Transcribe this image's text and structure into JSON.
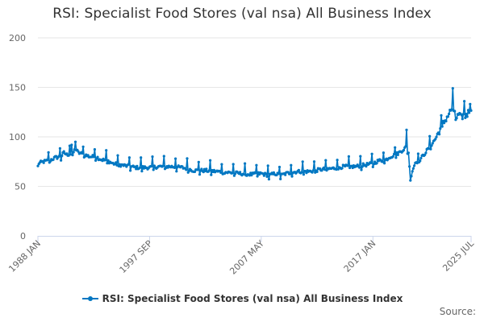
{
  "colors": {
    "series": "#0077c2",
    "grid": "#e6e6e6",
    "axis": "#ccd6eb",
    "label": "#666666"
  },
  "footer": {
    "source_label": "Source:"
  },
  "chart_data": {
    "type": "line",
    "title": "RSI: Specialist Food Stores (val nsa) All Business Index",
    "xlabel": "",
    "ylabel": "",
    "ylim": [
      0,
      200
    ],
    "yticks": [
      "0",
      "50",
      "100",
      "150",
      "200"
    ],
    "xlim": [
      "1988-01",
      "2025-07"
    ],
    "xticks": [
      {
        "label": "1988 JAN",
        "date": "1988-01"
      },
      {
        "label": "1997 SEP",
        "date": "1997-09"
      },
      {
        "label": "2007 MAY",
        "date": "2007-05"
      },
      {
        "label": "2017 JAN",
        "date": "2017-01"
      },
      {
        "label": "2025 JUL",
        "date": "2025-07"
      }
    ],
    "grid": true,
    "legend_position": "bottom",
    "series": [
      {
        "name": "RSI: Specialist Food Stores (val nsa) All Business Index",
        "points": [
          [
            "1988-01",
            73
          ],
          [
            "1988-07",
            75
          ],
          [
            "1989-01",
            76
          ],
          [
            "1989-07",
            79
          ],
          [
            "1990-01",
            80
          ],
          [
            "1990-04",
            84
          ],
          [
            "1990-07",
            82
          ],
          [
            "1991-01",
            83
          ],
          [
            "1991-04",
            88
          ],
          [
            "1991-07",
            84
          ],
          [
            "1992-01",
            82
          ],
          [
            "1992-07",
            80
          ],
          [
            "1993-01",
            80
          ],
          [
            "1993-07",
            77
          ],
          [
            "1994-01",
            76
          ],
          [
            "1994-07",
            73
          ],
          [
            "1995-01",
            72
          ],
          [
            "1995-07",
            71
          ],
          [
            "1996-01",
            70
          ],
          [
            "1996-07",
            69
          ],
          [
            "1997-01",
            69
          ],
          [
            "1997-09",
            69
          ],
          [
            "1998-07",
            70
          ],
          [
            "1999-07",
            70
          ],
          [
            "2000-07",
            69
          ],
          [
            "2001-07",
            66
          ],
          [
            "2002-07",
            66
          ],
          [
            "2003-07",
            65
          ],
          [
            "2004-07",
            64
          ],
          [
            "2005-07",
            63
          ],
          [
            "2006-07",
            62
          ],
          [
            "2007-05",
            63
          ],
          [
            "2008-01",
            61
          ],
          [
            "2008-07",
            63
          ],
          [
            "2009-01",
            61
          ],
          [
            "2009-07",
            63
          ],
          [
            "2010-07",
            65
          ],
          [
            "2011-07",
            65
          ],
          [
            "2012-07",
            67
          ],
          [
            "2013-07",
            68
          ],
          [
            "2014-07",
            70
          ],
          [
            "2015-07",
            70
          ],
          [
            "2016-07",
            72
          ],
          [
            "2017-01",
            73
          ],
          [
            "2017-07",
            76
          ],
          [
            "2018-01",
            76
          ],
          [
            "2018-07",
            80
          ],
          [
            "2019-01",
            82
          ],
          [
            "2019-07",
            86
          ],
          [
            "2019-12",
            90
          ],
          [
            "2020-02",
            84
          ],
          [
            "2020-04",
            58
          ],
          [
            "2020-06",
            66
          ],
          [
            "2020-09",
            74
          ],
          [
            "2021-01",
            76
          ],
          [
            "2021-06",
            82
          ],
          [
            "2021-12",
            90
          ],
          [
            "2022-06",
            98
          ],
          [
            "2022-12",
            110
          ],
          [
            "2023-06",
            120
          ],
          [
            "2023-09",
            125
          ],
          [
            "2023-12",
            130
          ],
          [
            "2024-03",
            118
          ],
          [
            "2024-06",
            122
          ],
          [
            "2024-09",
            119
          ],
          [
            "2024-12",
            124
          ],
          [
            "2025-03",
            123
          ],
          [
            "2025-07",
            129
          ]
        ],
        "extremes": [
          [
            "1991-04",
            95
          ],
          [
            "1990-10",
            91
          ],
          [
            "2017-12",
            84
          ],
          [
            "2019-12",
            107
          ],
          [
            "2020-04",
            56
          ],
          [
            "2023-12",
            149
          ],
          [
            "2024-02",
            126
          ],
          [
            "2024-12",
            136
          ],
          [
            "2025-06",
            133
          ]
        ]
      }
    ]
  }
}
